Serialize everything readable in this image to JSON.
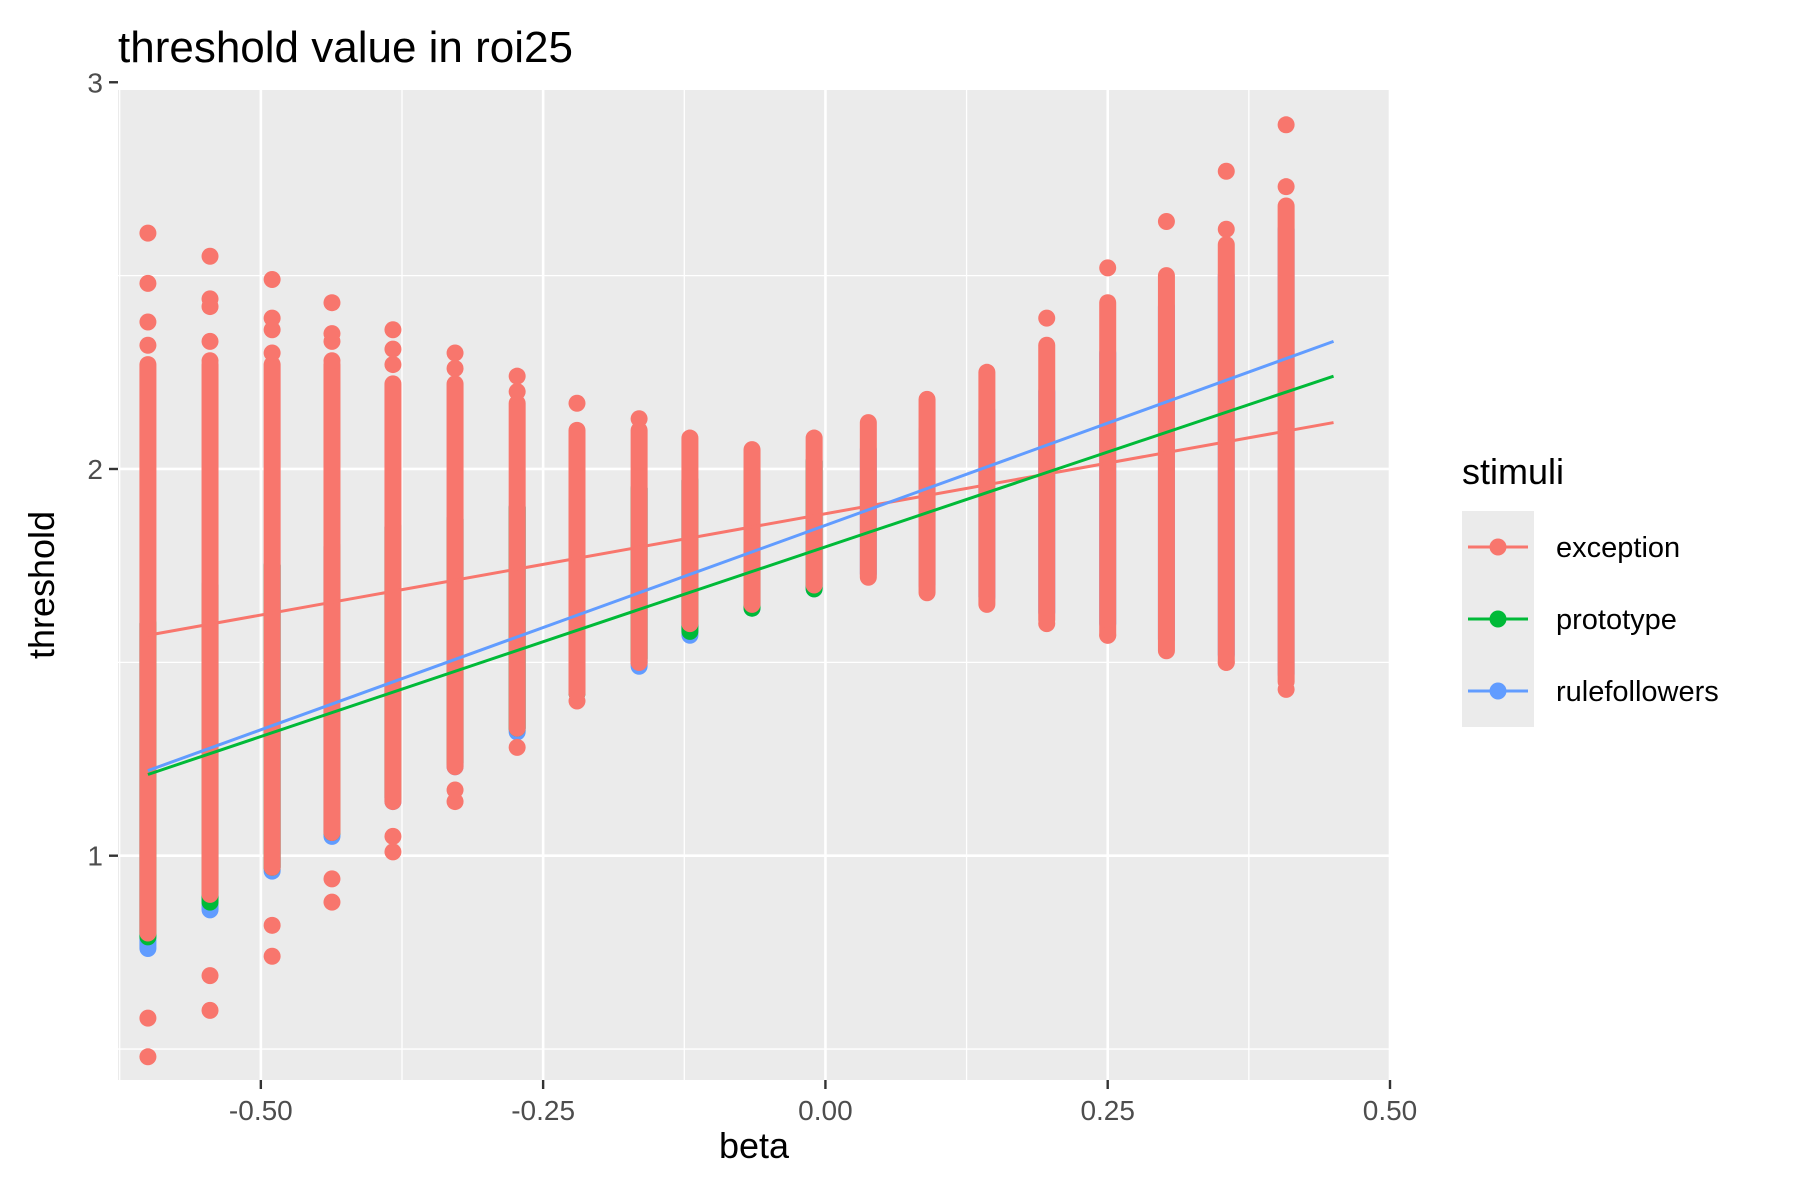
{
  "chart_data": {
    "type": "scatter",
    "title": "threshold value in roi25",
    "xlabel": "beta",
    "ylabel": "threshold",
    "xlim": [
      -0.6265,
      0.5
    ],
    "ylim": [
      0.42,
      2.98
    ],
    "x_ticks": [
      -0.5,
      -0.25,
      0.0,
      0.25,
      0.5
    ],
    "x_tick_labels": [
      "-0.50",
      "-0.25",
      "0.00",
      "0.25",
      "0.50"
    ],
    "y_ticks": [
      1,
      2,
      3
    ],
    "y_tick_labels": [
      "1",
      "2",
      "3"
    ],
    "grid": true,
    "legend": {
      "title": "stimuli",
      "position": "right",
      "entries": [
        "exception",
        "prototype",
        "rulefollowers"
      ]
    },
    "columns_x": [
      -0.6,
      -0.545,
      -0.49,
      -0.437,
      -0.383,
      -0.328,
      -0.273,
      -0.22,
      -0.165,
      -0.12,
      -0.065,
      -0.01,
      0.038,
      0.09,
      0.143,
      0.196,
      0.25,
      0.302,
      0.355,
      0.408
    ],
    "series": [
      {
        "name": "exception",
        "color": "#F8766D",
        "point_ranges": [
          [
            0.8,
            2.27
          ],
          [
            0.9,
            2.27
          ],
          [
            0.97,
            2.27
          ],
          [
            1.06,
            2.27
          ],
          [
            1.14,
            2.22
          ],
          [
            1.23,
            2.22
          ],
          [
            1.33,
            2.17
          ],
          [
            1.42,
            2.1
          ],
          [
            1.5,
            2.1
          ],
          [
            1.6,
            2.08
          ],
          [
            1.65,
            2.05
          ],
          [
            1.7,
            2.08
          ],
          [
            1.72,
            2.12
          ],
          [
            1.68,
            2.18
          ],
          [
            1.65,
            2.25
          ],
          [
            1.61,
            2.32
          ],
          [
            1.57,
            2.43
          ],
          [
            1.53,
            2.5
          ],
          [
            1.5,
            2.58
          ],
          [
            1.45,
            2.68
          ]
        ],
        "outliers": [
          [
            -0.6,
            0.48
          ],
          [
            -0.6,
            0.58
          ],
          [
            -0.6,
            2.32
          ],
          [
            -0.6,
            2.38
          ],
          [
            -0.6,
            2.48
          ],
          [
            -0.6,
            2.61
          ],
          [
            -0.545,
            0.6
          ],
          [
            -0.545,
            0.69
          ],
          [
            -0.545,
            2.28
          ],
          [
            -0.545,
            2.33
          ],
          [
            -0.545,
            2.42
          ],
          [
            -0.545,
            2.44
          ],
          [
            -0.545,
            2.55
          ],
          [
            -0.49,
            0.74
          ],
          [
            -0.49,
            0.82
          ],
          [
            -0.49,
            2.3
          ],
          [
            -0.49,
            2.36
          ],
          [
            -0.49,
            2.39
          ],
          [
            -0.49,
            2.49
          ],
          [
            -0.437,
            0.88
          ],
          [
            -0.437,
            0.94
          ],
          [
            -0.437,
            2.28
          ],
          [
            -0.437,
            2.33
          ],
          [
            -0.437,
            2.35
          ],
          [
            -0.437,
            2.43
          ],
          [
            -0.383,
            1.01
          ],
          [
            -0.383,
            1.05
          ],
          [
            -0.383,
            2.27
          ],
          [
            -0.383,
            2.31
          ],
          [
            -0.383,
            2.36
          ],
          [
            -0.328,
            1.14
          ],
          [
            -0.328,
            1.17
          ],
          [
            -0.328,
            2.26
          ],
          [
            -0.328,
            2.3
          ],
          [
            -0.273,
            1.28
          ],
          [
            -0.273,
            2.2
          ],
          [
            -0.273,
            2.24
          ],
          [
            -0.22,
            1.4
          ],
          [
            -0.22,
            2.17
          ],
          [
            -0.165,
            1.5
          ],
          [
            -0.165,
            2.13
          ],
          [
            0.196,
            1.6
          ],
          [
            0.196,
            2.39
          ],
          [
            0.25,
            1.57
          ],
          [
            0.25,
            2.52
          ],
          [
            0.302,
            2.64
          ],
          [
            0.355,
            1.5
          ],
          [
            0.355,
            2.62
          ],
          [
            0.355,
            2.77
          ],
          [
            0.408,
            1.43
          ],
          [
            0.408,
            2.73
          ],
          [
            0.408,
            2.89
          ]
        ],
        "fit": {
          "x": [
            -0.6,
            0.45
          ],
          "y": [
            1.57,
            2.12
          ]
        }
      },
      {
        "name": "prototype",
        "color": "#00BA38",
        "point_ranges": [
          [
            0.79,
            1.6
          ],
          [
            0.88,
            1.7
          ],
          [
            0.97,
            1.75
          ],
          [
            1.06,
            1.8
          ],
          [
            1.15,
            1.85
          ],
          [
            1.24,
            1.87
          ],
          [
            1.33,
            1.9
          ],
          [
            1.42,
            1.92
          ],
          [
            1.51,
            1.95
          ],
          [
            1.58,
            1.97
          ],
          [
            1.64,
            2.0
          ],
          [
            1.69,
            2.02
          ]
        ],
        "outliers": [],
        "fit": {
          "x": [
            -0.6,
            0.45
          ],
          "y": [
            1.21,
            2.24
          ]
        }
      },
      {
        "name": "rulefollowers",
        "color": "#619CFF",
        "point_ranges": [
          [
            0.76,
            1.6
          ],
          [
            0.86,
            1.7
          ],
          [
            0.96,
            1.75
          ],
          [
            1.05,
            1.8
          ],
          [
            1.14,
            1.85
          ],
          [
            1.23,
            1.87
          ],
          [
            1.32,
            1.9
          ],
          [
            1.42,
            1.92
          ],
          [
            1.49,
            1.95
          ],
          [
            1.57,
            1.97
          ],
          [
            1.64,
            2.0
          ],
          [
            1.69,
            2.02
          ],
          [
            1.73,
            2.05
          ],
          [
            1.7,
            2.1
          ],
          [
            1.67,
            2.15
          ],
          [
            1.63,
            2.2
          ],
          [
            1.6,
            2.3
          ],
          [
            1.56,
            2.42
          ],
          [
            1.52,
            2.5
          ],
          [
            1.47,
            2.62
          ]
        ],
        "outliers": [],
        "fit": {
          "x": [
            -0.6,
            0.45
          ],
          "y": [
            1.22,
            2.33
          ]
        }
      }
    ]
  }
}
